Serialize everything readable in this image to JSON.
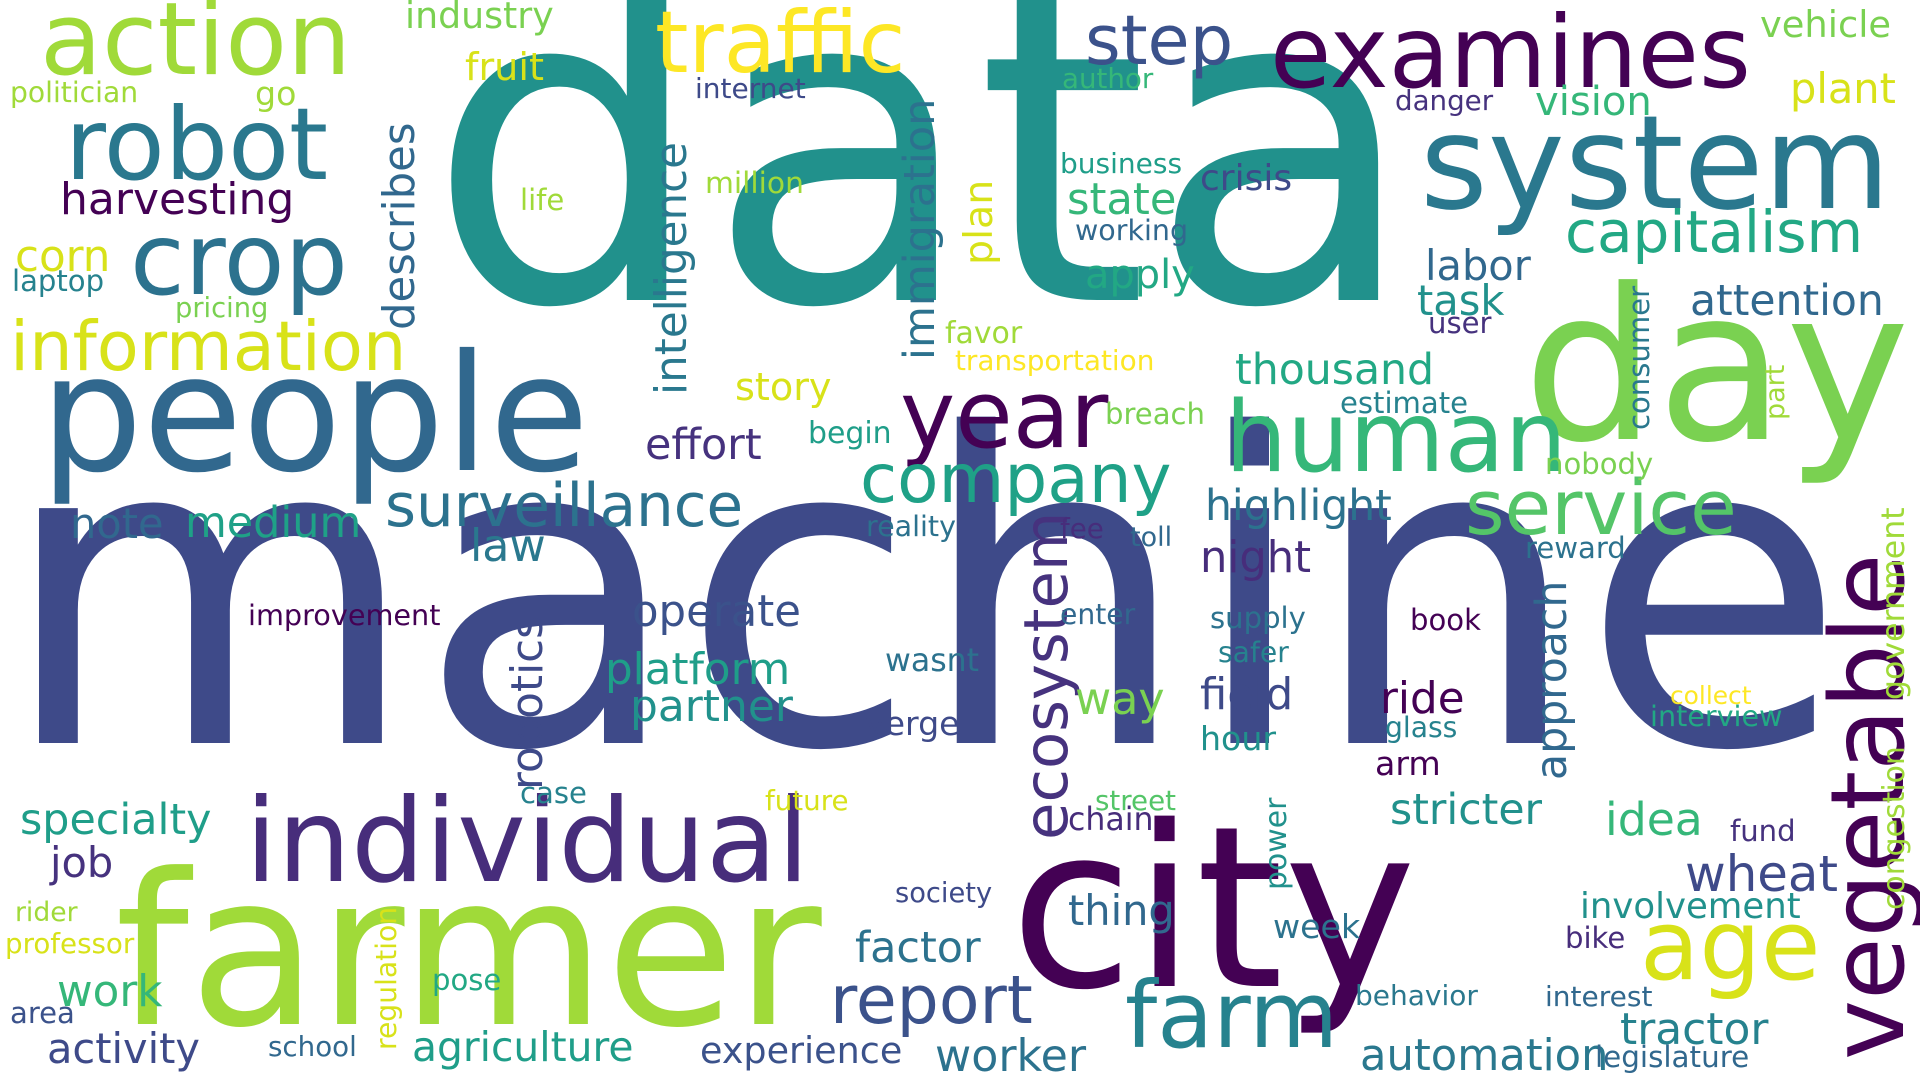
{
  "word_cloud": {
    "words": [
      {
        "text": "data",
        "color": "#21918c"
      },
      {
        "text": "machine",
        "color": "#3e4a89"
      },
      {
        "text": "city",
        "color": "#440154"
      },
      {
        "text": "farmer",
        "color": "#a0da39"
      },
      {
        "text": "people",
        "color": "#31688e"
      },
      {
        "text": "day",
        "color": "#7ad151"
      },
      {
        "text": "individual",
        "color": "#472d7b"
      },
      {
        "text": "system",
        "color": "#2a788e"
      },
      {
        "text": "examines",
        "color": "#440154"
      },
      {
        "text": "traffic",
        "color": "#fde725"
      },
      {
        "text": "action",
        "color": "#a0da39"
      },
      {
        "text": "robot",
        "color": "#2a788e"
      },
      {
        "text": "crop",
        "color": "#2c728e"
      },
      {
        "text": "information",
        "color": "#d8e219"
      },
      {
        "text": "year",
        "color": "#440154"
      },
      {
        "text": "human",
        "color": "#35b779"
      },
      {
        "text": "vegetable",
        "color": "#440154"
      },
      {
        "text": "company",
        "color": "#1fa187"
      },
      {
        "text": "farm",
        "color": "#26828e"
      },
      {
        "text": "report",
        "color": "#3b528b"
      },
      {
        "text": "age",
        "color": "#d8e219"
      },
      {
        "text": "service",
        "color": "#54c568"
      },
      {
        "text": "capitalism",
        "color": "#22a884"
      },
      {
        "text": "surveillance",
        "color": "#2c728e"
      },
      {
        "text": "step",
        "color": "#3b528b"
      },
      {
        "text": "ecosystem",
        "color": "#46327e"
      },
      {
        "text": "intelligence",
        "color": "#2a788e"
      },
      {
        "text": "describes",
        "color": "#31688e"
      },
      {
        "text": "immigration",
        "color": "#2c728e"
      },
      {
        "text": "robotics",
        "color": "#3e4a89"
      },
      {
        "text": "approach",
        "color": "#31688e"
      },
      {
        "text": "agriculture",
        "color": "#1f9e89"
      },
      {
        "text": "automation",
        "color": "#2a788e"
      },
      {
        "text": "harvesting",
        "color": "#440154"
      },
      {
        "text": "specialty",
        "color": "#1f9e89"
      },
      {
        "text": "thousand",
        "color": "#22a884"
      },
      {
        "text": "highlight",
        "color": "#2c728e"
      },
      {
        "text": "platform",
        "color": "#1f9e89"
      },
      {
        "text": "partner",
        "color": "#21918c"
      },
      {
        "text": "operate",
        "color": "#3b528b"
      },
      {
        "text": "effort",
        "color": "#46327e"
      },
      {
        "text": "state",
        "color": "#35b779"
      },
      {
        "text": "apply",
        "color": "#22a884"
      },
      {
        "text": "vision",
        "color": "#35b779"
      },
      {
        "text": "plant",
        "color": "#d8e219"
      },
      {
        "text": "attention",
        "color": "#31688e"
      },
      {
        "text": "task",
        "color": "#21918c"
      },
      {
        "text": "labor",
        "color": "#31688e"
      },
      {
        "text": "crisis",
        "color": "#3e4a89"
      },
      {
        "text": "night",
        "color": "#472d7b"
      },
      {
        "text": "field",
        "color": "#3e4a89"
      },
      {
        "text": "way",
        "color": "#7ad151"
      },
      {
        "text": "thing",
        "color": "#31688e"
      },
      {
        "text": "factor",
        "color": "#2c728e"
      },
      {
        "text": "worker",
        "color": "#2c728e"
      },
      {
        "text": "experience",
        "color": "#3b528b"
      },
      {
        "text": "activity",
        "color": "#3e4a89"
      },
      {
        "text": "work",
        "color": "#35b779"
      },
      {
        "text": "medium",
        "color": "#1fa187"
      },
      {
        "text": "note",
        "color": "#31688e"
      },
      {
        "text": "fruit",
        "color": "#d8e219"
      },
      {
        "text": "corn",
        "color": "#d8e219"
      },
      {
        "text": "story",
        "color": "#d8e219"
      },
      {
        "text": "law",
        "color": "#2a788e"
      },
      {
        "text": "stricter",
        "color": "#21918c"
      },
      {
        "text": "idea",
        "color": "#35b779"
      },
      {
        "text": "wheat",
        "color": "#3e4a89"
      },
      {
        "text": "involvement",
        "color": "#21918c"
      },
      {
        "text": "tractor",
        "color": "#26828e"
      },
      {
        "text": "job",
        "color": "#46327e"
      },
      {
        "text": "ride",
        "color": "#440154"
      },
      {
        "text": "industry",
        "color": "#7ad151"
      },
      {
        "text": "vehicle",
        "color": "#7ad151"
      },
      {
        "text": "internet",
        "color": "#3e4a89"
      },
      {
        "text": "politician",
        "color": "#a0da39"
      },
      {
        "text": "go",
        "color": "#a0da39"
      },
      {
        "text": "author",
        "color": "#35b779"
      },
      {
        "text": "danger",
        "color": "#46327e"
      },
      {
        "text": "business",
        "color": "#1f9e89"
      },
      {
        "text": "working",
        "color": "#31688e"
      },
      {
        "text": "life",
        "color": "#a0da39"
      },
      {
        "text": "million",
        "color": "#a0da39"
      },
      {
        "text": "laptop",
        "color": "#26828e"
      },
      {
        "text": "pricing",
        "color": "#7ad151"
      },
      {
        "text": "plan",
        "color": "#d8e219"
      },
      {
        "text": "user",
        "color": "#46327e"
      },
      {
        "text": "favor",
        "color": "#a0da39"
      },
      {
        "text": "transportation",
        "color": "#fde725"
      },
      {
        "text": "consumer",
        "color": "#2a788e"
      },
      {
        "text": "part",
        "color": "#a0da39"
      },
      {
        "text": "estimate",
        "color": "#26828e"
      },
      {
        "text": "breach",
        "color": "#7ad151"
      },
      {
        "text": "begin",
        "color": "#1f9e89"
      },
      {
        "text": "nobody",
        "color": "#7ad151"
      },
      {
        "text": "reality",
        "color": "#2c728e"
      },
      {
        "text": "fee",
        "color": "#472d7b"
      },
      {
        "text": "toll",
        "color": "#31688e"
      },
      {
        "text": "reward",
        "color": "#2c728e"
      },
      {
        "text": "government",
        "color": "#a0da39"
      },
      {
        "text": "improvement",
        "color": "#440154"
      },
      {
        "text": "enter",
        "color": "#31688e"
      },
      {
        "text": "supply",
        "color": "#2c728e"
      },
      {
        "text": "book",
        "color": "#440154"
      },
      {
        "text": "safer",
        "color": "#26828e"
      },
      {
        "text": "wasnt",
        "color": "#2c728e"
      },
      {
        "text": "collect",
        "color": "#fde725"
      },
      {
        "text": "interview",
        "color": "#22a884"
      },
      {
        "text": "verge",
        "color": "#3e4a89"
      },
      {
        "text": "hour",
        "color": "#21918c"
      },
      {
        "text": "glass",
        "color": "#26828e"
      },
      {
        "text": "case",
        "color": "#26828e"
      },
      {
        "text": "arm",
        "color": "#440154"
      },
      {
        "text": "future",
        "color": "#d8e219"
      },
      {
        "text": "street",
        "color": "#54c568"
      },
      {
        "text": "chain",
        "color": "#472d7b"
      },
      {
        "text": "congestion",
        "color": "#a0da39"
      },
      {
        "text": "power",
        "color": "#21918c"
      },
      {
        "text": "fund",
        "color": "#46327e"
      },
      {
        "text": "society",
        "color": "#3e4a89"
      },
      {
        "text": "regulation",
        "color": "#d8e219"
      },
      {
        "text": "rider",
        "color": "#a0da39"
      },
      {
        "text": "professor",
        "color": "#d8e219"
      },
      {
        "text": "week",
        "color": "#2c728e"
      },
      {
        "text": "bike",
        "color": "#472d7b"
      },
      {
        "text": "pose",
        "color": "#22a884"
      },
      {
        "text": "behavior",
        "color": "#2a788e"
      },
      {
        "text": "interest",
        "color": "#31688e"
      },
      {
        "text": "area",
        "color": "#3b528b"
      },
      {
        "text": "school",
        "color": "#31688e"
      },
      {
        "text": "legislature",
        "color": "#31688e"
      }
    ]
  }
}
